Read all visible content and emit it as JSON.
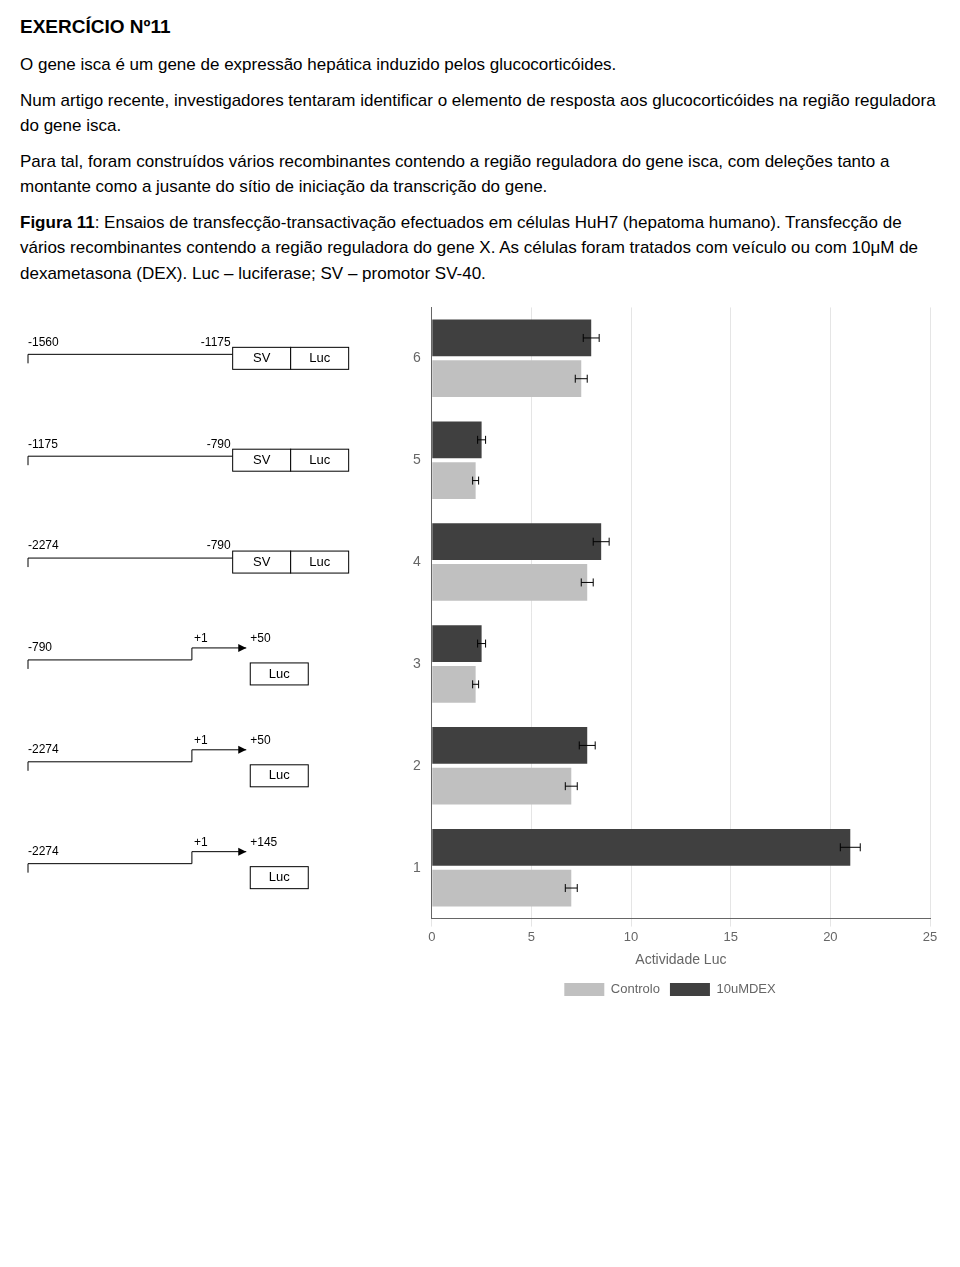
{
  "chart_data": {
    "type": "bar",
    "orientation": "horizontal",
    "title": "EXERCÍCIO Nº11",
    "annotations": [
      "O gene isca é um gene de expressão hepática induzido pelos glucocorticóides.",
      "Num artigo recente, investigadores tentaram identificar o elemento de resposta aos glucocorticóides na região reguladora do gene isca.",
      "Para tal, foram construídos vários recombinantes contendo a região reguladora do gene isca, com deleções tanto a montante como a jusante do sítio de iniciação da transcrição do gene.",
      "Figura 11: Ensaios de transfecção-transactivação efectuados em células HuH7 (hepatoma humano). Transfecção de vários recombinantes contendo a região reguladora do gene X. As células foram tratados com veículo ou com 10μM de dexametasona (DEX). Luc – luciferase; SV – promotor SV-40."
    ],
    "diagram": [
      {
        "category": "1",
        "labels": [
          "-2274",
          "+1",
          "+145"
        ],
        "boxes": [
          "Luc"
        ]
      },
      {
        "category": "2",
        "labels": [
          "-2274",
          "+1",
          "+50"
        ],
        "boxes": [
          "Luc"
        ]
      },
      {
        "category": "3",
        "labels": [
          "-790",
          "+1",
          "+50"
        ],
        "boxes": [
          "Luc"
        ]
      },
      {
        "category": "4",
        "labels": [
          "-2274",
          "-790"
        ],
        "boxes": [
          "SV",
          "Luc"
        ]
      },
      {
        "category": "5",
        "labels": [
          "-1175",
          "-790"
        ],
        "boxes": [
          "SV",
          "Luc"
        ]
      },
      {
        "category": "6",
        "labels": [
          "-1560",
          "-1175"
        ],
        "boxes": [
          "SV",
          "Luc"
        ]
      }
    ],
    "categories": [
      "1",
      "2",
      "3",
      "4",
      "5",
      "6"
    ],
    "series": [
      {
        "name": "10uMDEX",
        "color": "#404040",
        "values": [
          21.0,
          7.8,
          2.5,
          8.5,
          2.5,
          8.0
        ],
        "errors": [
          0.5,
          0.4,
          0.2,
          0.4,
          0.2,
          0.4
        ]
      },
      {
        "name": "Controlo",
        "color": "#c0c0c0",
        "values": [
          7.0,
          7.0,
          2.2,
          7.8,
          2.2,
          7.5
        ],
        "errors": [
          0.3,
          0.3,
          0.15,
          0.3,
          0.15,
          0.3
        ]
      }
    ],
    "xlabel": "Actividade Luc",
    "xlim": [
      0,
      25
    ],
    "xticks": [
      0,
      5,
      10,
      15,
      20,
      25
    ],
    "grid": "x",
    "legend": "bottom"
  }
}
